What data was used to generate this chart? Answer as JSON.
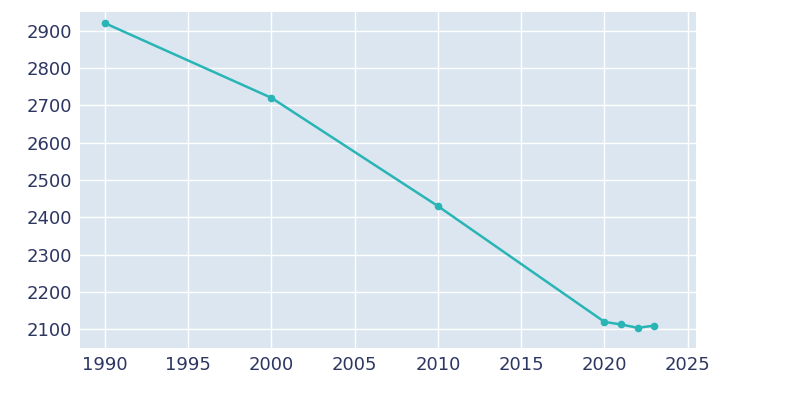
{
  "years": [
    1990,
    2000,
    2010,
    2020,
    2021,
    2022,
    2023
  ],
  "population": [
    2920,
    2720,
    2430,
    2120,
    2113,
    2104,
    2110
  ],
  "line_color": "#29b5b5",
  "marker_color": "#29b5b5",
  "fig_bg_color": "#ffffff",
  "plot_bg_color": "#dce6f0",
  "grid_color": "#ffffff",
  "tick_color": "#2d3561",
  "ylim": [
    2050,
    2950
  ],
  "xlim": [
    1988.5,
    2025.5
  ],
  "yticks": [
    2100,
    2200,
    2300,
    2400,
    2500,
    2600,
    2700,
    2800,
    2900
  ],
  "xticks": [
    1990,
    1995,
    2000,
    2005,
    2010,
    2015,
    2020,
    2025
  ],
  "tick_fontsize": 13,
  "linewidth": 1.8,
  "markersize": 4.5
}
